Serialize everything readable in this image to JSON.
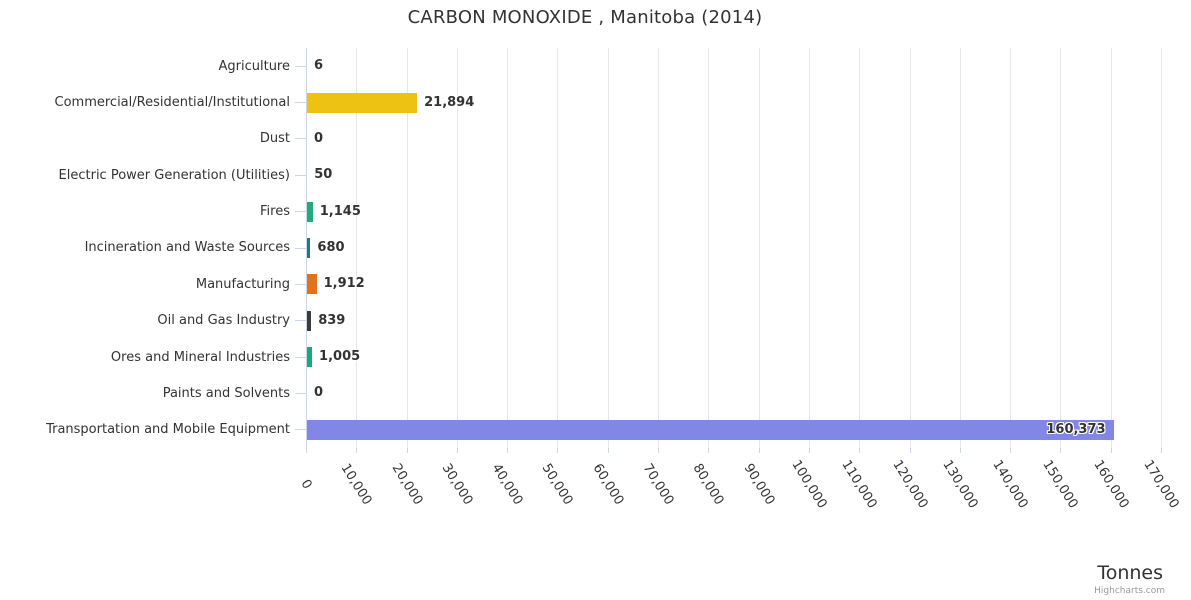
{
  "title": "CARBON MONOXIDE , Manitoba (2014)",
  "credit": "Highcharts.com",
  "chart_data": {
    "type": "bar",
    "orientation": "horizontal",
    "title": "CARBON MONOXIDE , Manitoba (2014)",
    "xlabel": "Tonnes",
    "ylabel": "",
    "xlim": [
      0,
      170000
    ],
    "grid": true,
    "legend": false,
    "categories": [
      "Agriculture",
      "Commercial/Residential/Institutional",
      "Dust",
      "Electric Power Generation (Utilities)",
      "Fires",
      "Incineration and Waste Sources",
      "Manufacturing",
      "Oil and Gas Industry",
      "Ores and Mineral Industries",
      "Paints and Solvents",
      "Transportation and Mobile Equipment"
    ],
    "values": [
      6,
      21894,
      0,
      50,
      1145,
      680,
      1912,
      839,
      1005,
      0,
      160373
    ],
    "value_labels": [
      "6",
      "21,894",
      "0",
      "50",
      "1,145",
      "680",
      "1,912",
      "839",
      "1,005",
      "0",
      "160,373"
    ],
    "bar_colors": [
      null,
      "#EDC213",
      null,
      null,
      "#23A97E",
      "#17807E",
      "#E2731C",
      "#3B3B3D",
      "#12AD7C",
      null,
      "#8186E7"
    ],
    "x_ticks": [
      0,
      10000,
      20000,
      30000,
      40000,
      50000,
      60000,
      70000,
      80000,
      90000,
      100000,
      110000,
      120000,
      130000,
      140000,
      150000,
      160000,
      170000
    ],
    "x_tick_labels": [
      "0",
      "10,000",
      "20,000",
      "30,000",
      "40,000",
      "50,000",
      "60,000",
      "70,000",
      "80,000",
      "90,000",
      "100,000",
      "110,000",
      "120,000",
      "130,000",
      "140,000",
      "150,000",
      "160,000",
      "170,000"
    ]
  }
}
